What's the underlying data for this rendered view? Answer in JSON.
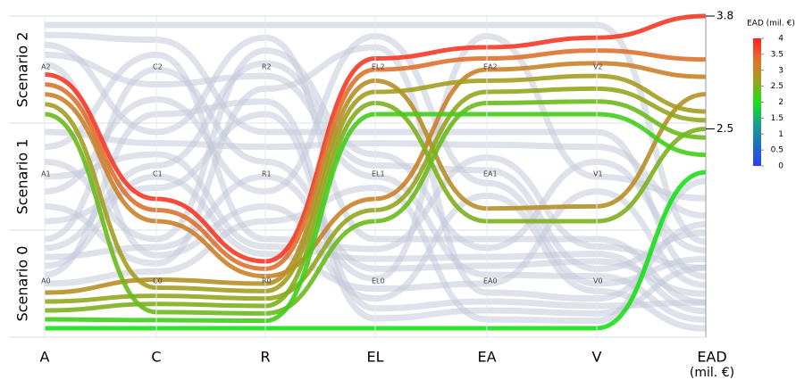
{
  "chart_data": {
    "type": "parallel-sets",
    "row_labels": [
      "Scenario 0",
      "Scenario 1",
      "Scenario 2"
    ],
    "axes": [
      {
        "name": "A",
        "levels": [
          "A0",
          "A1",
          "A2"
        ]
      },
      {
        "name": "C",
        "levels": [
          "C0",
          "C1",
          "C2"
        ]
      },
      {
        "name": "R",
        "levels": [
          "R0",
          "R1",
          "R2"
        ]
      },
      {
        "name": "EL",
        "levels": [
          "EL0",
          "EL1",
          "EL2"
        ]
      },
      {
        "name": "EA",
        "levels": [
          "EA0",
          "EA1",
          "EA2"
        ]
      },
      {
        "name": "V",
        "levels": [
          "V0",
          "V1",
          "V2"
        ]
      }
    ],
    "value_axis": {
      "name": "EAD",
      "unit": "(mil. €)",
      "ylim": [
        0.1,
        3.8
      ],
      "yticks": [
        3.8,
        2.5
      ]
    },
    "highlighted_records": [
      {
        "levels": [
          2,
          1,
          0,
          2,
          2,
          2
        ],
        "ead": 3.8
      },
      {
        "levels": [
          2,
          1,
          0,
          2,
          2,
          2
        ],
        "ead": 3.3
      },
      {
        "levels": [
          2,
          1,
          0,
          1,
          2,
          2
        ],
        "ead": 3.1
      },
      {
        "levels": [
          0,
          0,
          0,
          2,
          1,
          1
        ],
        "ead": 2.9
      },
      {
        "levels": [
          2,
          0,
          0,
          2,
          2,
          2
        ],
        "ead": 2.7
      },
      {
        "levels": [
          0,
          0,
          0,
          1,
          2,
          2
        ],
        "ead": 2.6
      },
      {
        "levels": [
          0,
          0,
          0,
          2,
          1,
          1
        ],
        "ead": 2.5
      },
      {
        "levels": [
          2,
          0,
          0,
          1,
          2,
          2
        ],
        "ead": 2.4
      },
      {
        "levels": [
          0,
          0,
          0,
          2,
          2,
          2
        ],
        "ead": 2.2
      },
      {
        "levels": [
          0,
          0,
          0,
          0,
          0,
          0
        ],
        "ead": 2.0
      }
    ],
    "background_records": [
      {
        "levels": [
          2,
          2,
          2,
          2,
          2,
          2
        ],
        "ead": 1.2
      },
      {
        "levels": [
          2,
          2,
          1,
          1,
          1,
          1
        ],
        "ead": 0.8
      },
      {
        "levels": [
          2,
          1,
          2,
          0,
          0,
          0
        ],
        "ead": 0.5
      },
      {
        "levels": [
          1,
          1,
          1,
          1,
          1,
          1
        ],
        "ead": 1.5
      },
      {
        "levels": [
          1,
          2,
          0,
          0,
          1,
          0
        ],
        "ead": 0.9
      },
      {
        "levels": [
          1,
          0,
          2,
          1,
          0,
          1
        ],
        "ead": 1.1
      },
      {
        "levels": [
          1,
          1,
          0,
          0,
          0,
          0
        ],
        "ead": 0.4
      },
      {
        "levels": [
          0,
          2,
          1,
          0,
          0,
          0
        ],
        "ead": 0.6
      },
      {
        "levels": [
          0,
          1,
          2,
          1,
          1,
          0
        ],
        "ead": 1.3
      },
      {
        "levels": [
          0,
          0,
          1,
          0,
          2,
          1
        ],
        "ead": 1.7
      },
      {
        "levels": [
          2,
          2,
          2,
          1,
          0,
          0
        ],
        "ead": 0.3
      },
      {
        "levels": [
          1,
          2,
          1,
          2,
          1,
          0
        ],
        "ead": 1.0
      },
      {
        "levels": [
          0,
          1,
          0,
          0,
          0,
          1
        ],
        "ead": 0.7
      },
      {
        "levels": [
          2,
          0,
          1,
          0,
          1,
          0
        ],
        "ead": 0.2
      },
      {
        "levels": [
          1,
          0,
          2,
          2,
          0,
          0
        ],
        "ead": 1.4
      },
      {
        "levels": [
          0,
          2,
          2,
          0,
          0,
          0
        ],
        "ead": 0.5
      },
      {
        "levels": [
          1,
          1,
          2,
          0,
          0,
          0
        ],
        "ead": 0.9
      },
      {
        "levels": [
          0,
          0,
          1,
          1,
          0,
          0
        ],
        "ead": 1.9
      }
    ],
    "colorbar": {
      "title": "EAD (mil. €)",
      "lim": [
        0,
        4
      ],
      "ticks": [
        0,
        0.5,
        1,
        1.5,
        2,
        2.5,
        3,
        3.5,
        4
      ],
      "colors": [
        "#2b3ef5",
        "#1f6fc0",
        "#1aa08a",
        "#18e018",
        "#a0a020",
        "#e07030",
        "#ff2020"
      ]
    }
  }
}
